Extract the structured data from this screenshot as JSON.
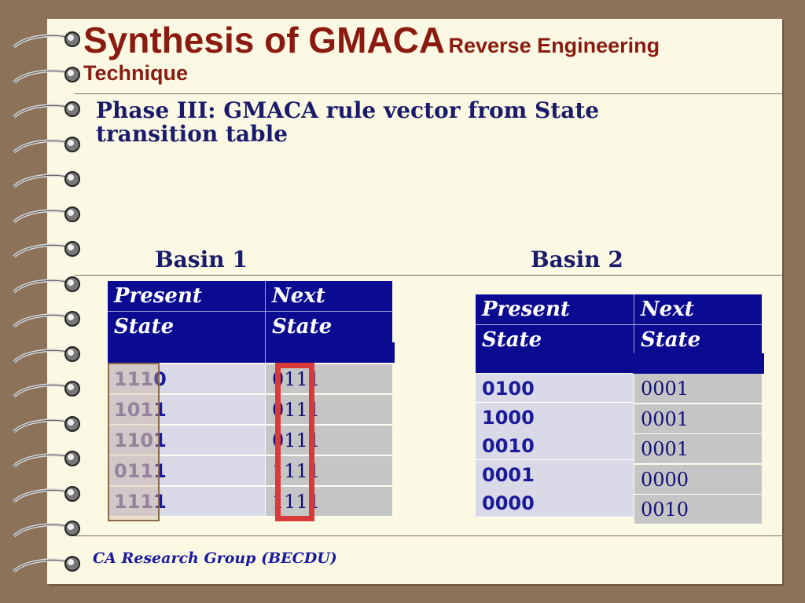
{
  "title": {
    "main": "Synthesis of GMACA",
    "suffix": "Reverse Engineering",
    "line2": "Technique"
  },
  "subtitle": {
    "line1": "Phase III: GMACA rule vector from State",
    "line2": "transition table"
  },
  "basin1": {
    "label": "Basin 1",
    "header": {
      "col1_line1": "Present",
      "col1_line2": "State",
      "col2_line1": "Next",
      "col2_line2": "State"
    },
    "present": [
      {
        "prefix": "111",
        "last": "0"
      },
      {
        "prefix": "101",
        "last": "1"
      },
      {
        "prefix": "110",
        "last": "1"
      },
      {
        "prefix": "011",
        "last": "1"
      },
      {
        "prefix": "111",
        "last": "1"
      }
    ],
    "next": [
      {
        "a": "01",
        "b": "1",
        "c": "1"
      },
      {
        "a": "01",
        "b": "1",
        "c": "1"
      },
      {
        "a": "01",
        "b": "1",
        "c": "1"
      },
      {
        "a": "11",
        "b": "1",
        "c": "1"
      },
      {
        "a": "11",
        "b": "1",
        "c": "1"
      }
    ]
  },
  "basin2": {
    "label": "Basin 2",
    "header": {
      "col1_line1": "Present",
      "col1_line2": "State",
      "col2_line1": "Next",
      "col2_line2": "State"
    },
    "present": [
      "0100",
      "1000",
      "0010",
      "0001",
      "0000"
    ],
    "next": [
      "0001",
      "0001",
      "0001",
      "0000",
      "0010"
    ]
  },
  "footer": "CA Research Group (BECDU)",
  "colors": {
    "title": "#8b1a10",
    "header_bg": "#0b0b92",
    "highlight": "#d83a3a"
  }
}
